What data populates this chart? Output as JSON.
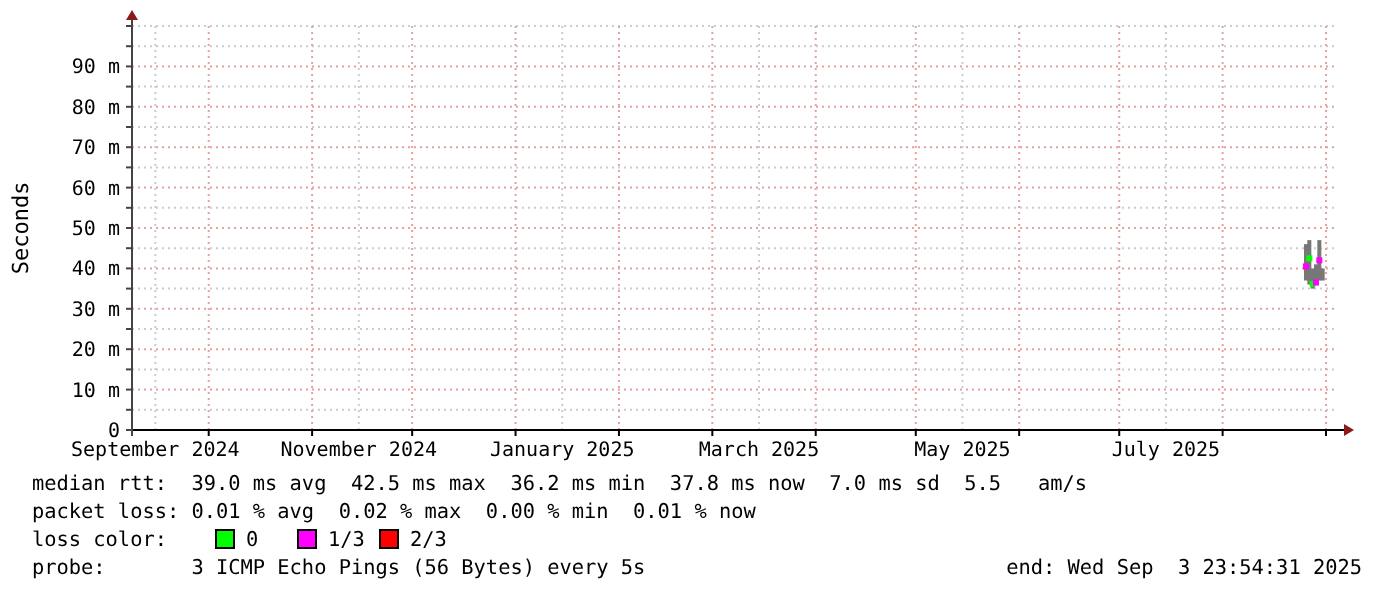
{
  "chart_data": {
    "type": "scatter",
    "ylabel": "Seconds",
    "xlim": [
      "2024-09-08",
      "2025-09-03T23:54"
    ],
    "xticks": [
      {
        "value": "2024-09-15",
        "label": "September 2024"
      },
      {
        "value": "2024-11-15",
        "label": "November 2024"
      },
      {
        "value": "2025-01-15",
        "label": "January 2025"
      },
      {
        "value": "2025-03-15",
        "label": "March 2025"
      },
      {
        "value": "2025-05-15",
        "label": "May 2025"
      },
      {
        "value": "2025-07-15",
        "label": "July 2025"
      },
      {
        "value": "2024-10-01",
        "label": null
      },
      {
        "value": "2024-11-01",
        "label": null
      },
      {
        "value": "2024-12-01",
        "label": null
      },
      {
        "value": "2025-01-01",
        "label": null
      },
      {
        "value": "2025-02-01",
        "label": null
      },
      {
        "value": "2025-03-01",
        "label": null
      },
      {
        "value": "2025-04-01",
        "label": null
      },
      {
        "value": "2025-05-01",
        "label": null
      },
      {
        "value": "2025-06-01",
        "label": null
      },
      {
        "value": "2025-07-01",
        "label": null
      },
      {
        "value": "2025-08-01",
        "label": null
      },
      {
        "value": "2025-09-01",
        "label": null
      }
    ],
    "ylim": [
      0,
      100
    ],
    "yticks": [
      {
        "value": 0,
        "label": "0"
      },
      {
        "value": 10,
        "label": "10 m"
      },
      {
        "value": 20,
        "label": "20 m"
      },
      {
        "value": 30,
        "label": "30 m"
      },
      {
        "value": 40,
        "label": "40 m"
      },
      {
        "value": 50,
        "label": "50 m"
      },
      {
        "value": 60,
        "label": "60 m"
      },
      {
        "value": 70,
        "label": "70 m"
      },
      {
        "value": 80,
        "label": "80 m"
      },
      {
        "value": 90,
        "label": "90 m"
      },
      {
        "value": 5,
        "label": null
      },
      {
        "value": 15,
        "label": null
      },
      {
        "value": 25,
        "label": null
      },
      {
        "value": 35,
        "label": null
      },
      {
        "value": 45,
        "label": null
      },
      {
        "value": 55,
        "label": null
      },
      {
        "value": 65,
        "label": null
      },
      {
        "value": 75,
        "label": null
      },
      {
        "value": 85,
        "label": null
      },
      {
        "value": 95,
        "label": null
      },
      {
        "value": 100,
        "label": null
      }
    ],
    "grid": true,
    "marker": "square",
    "legend": "bottom",
    "legend_title": "loss color:",
    "series": [
      {
        "type": "bar",
        "color": "#777777",
        "x": [
          "2025-08-26",
          "2025-08-27",
          "2025-08-28",
          "2025-08-29",
          "2025-08-30",
          "2025-08-31"
        ],
        "base": [
          37,
          36,
          35,
          36,
          37,
          37
        ],
        "values": [
          9,
          11,
          5,
          5,
          10,
          3
        ]
      },
      {
        "name": "0",
        "color": "#00ff00",
        "x": [
          "2025-08-27",
          "2025-08-28"
        ],
        "values": [
          42.5,
          36.2
        ]
      },
      {
        "name": "1/3",
        "color": "#ff00ff",
        "x": [
          "2025-08-26",
          "2025-08-29",
          "2025-08-30"
        ],
        "values": [
          40.5,
          36.5,
          42
        ]
      },
      {
        "name": "2/3",
        "color": "#ff0000"
      }
    ],
    "annotations": [
      "median rtt:  39.0 ms avg  42.5 ms max  36.2 ms min  37.8 ms now  7.0 ms sd  5.5   am/s",
      "packet loss: 0.01 % avg  0.02 % max  0.00 % min  0.01 % now",
      "probe:       3 ICMP Echo Pings (56 Bytes) every 5s",
      "end: Wed Sep  3 23:54:31 2025"
    ]
  }
}
